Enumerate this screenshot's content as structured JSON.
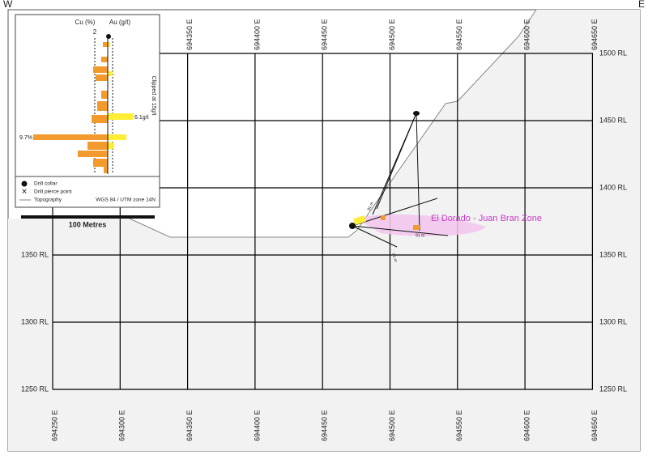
{
  "header": {
    "west": "W",
    "east": "E"
  },
  "eastings": [
    "694250 E",
    "694300 E",
    "694350 E",
    "694400 E",
    "694450 E",
    "694500 E",
    "694550 E",
    "694600 E",
    "694650 E"
  ],
  "elevations": [
    "1500 RL",
    "1450 RL",
    "1400 RL",
    "1350 RL",
    "1300 RL",
    "1250 RL"
  ],
  "inset": {
    "cu_label": "Cu (%)",
    "au_label": "Au (g/t)",
    "cu_tick": "2",
    "clip_note": "Clipped at 15g/t",
    "au_max": "6.1g/t",
    "cu_max": "9.7%"
  },
  "legend": {
    "collar": "Drill collar",
    "pierce": "Drill pierce point",
    "topography": "Topography",
    "projection": "WGS 84 / UTM zone 14N"
  },
  "scale": "100 Metres",
  "zone": "El Dorado - Juan Bran Zone",
  "hole_labels": [
    "91 m",
    "91 m",
    "91 m"
  ]
}
